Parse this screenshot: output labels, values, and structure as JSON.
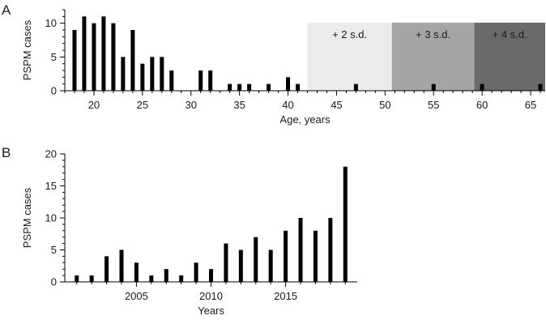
{
  "chart_data": [
    {
      "panel": "A",
      "type": "bar",
      "xlabel": "Age, years",
      "ylabel": "PSPM cases",
      "xlim": [
        17,
        66.5
      ],
      "ylim": [
        0,
        12
      ],
      "xticks": [
        20,
        25,
        30,
        35,
        40,
        45,
        50,
        55,
        60,
        65
      ],
      "yticks": [
        0,
        5,
        10
      ],
      "grid": false,
      "x": [
        18,
        19,
        20,
        21,
        22,
        23,
        24,
        25,
        26,
        27,
        28,
        31,
        32,
        34,
        35,
        36,
        38,
        40,
        41,
        47,
        55,
        60,
        66
      ],
      "values": [
        9,
        11,
        10,
        11,
        10,
        5,
        9,
        4,
        5,
        5,
        3,
        3,
        3,
        1,
        1,
        1,
        1,
        2,
        1,
        1,
        1,
        1,
        1
      ],
      "bands": [
        {
          "label": "+ 2 s.d.",
          "from": 42,
          "to": 50.7,
          "color": "#ebebeb",
          "text_color": "#1a1a1a"
        },
        {
          "label": "+ 3 s.d.",
          "from": 50.7,
          "to": 59.2,
          "color": "#a5a5a3",
          "text_color": "#1a1a1a"
        },
        {
          "label": "+ 4 s.d.",
          "from": 59.2,
          "to": 66.5,
          "color": "#6a6a68",
          "text_color": "#1a1a1a"
        }
      ]
    },
    {
      "panel": "B",
      "type": "bar",
      "xlabel": "Years",
      "ylabel": "PSPM cases",
      "xlim": [
        2000.2,
        2019.8
      ],
      "ylim": [
        0,
        20
      ],
      "xticks": [
        2005,
        2010,
        2015
      ],
      "yticks": [
        0,
        5,
        10,
        15,
        20
      ],
      "grid": false,
      "x": [
        2001,
        2002,
        2003,
        2004,
        2005,
        2006,
        2007,
        2008,
        2009,
        2010,
        2011,
        2012,
        2013,
        2014,
        2015,
        2016,
        2017,
        2018,
        2019
      ],
      "values": [
        1,
        1,
        4,
        5,
        3,
        1,
        2,
        1,
        3,
        2,
        6,
        5,
        7,
        5,
        8,
        10,
        8,
        10,
        18
      ]
    }
  ]
}
